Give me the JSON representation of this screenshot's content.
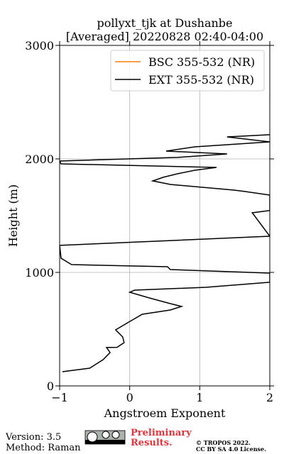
{
  "chart_data": {
    "type": "line",
    "title": "pollyxt_tjk at Dushanbe",
    "subtitle": "[Averaged] 20220828 02:40-04:00",
    "x_label": "Angstroem Exponent",
    "y_label": "Height (m)",
    "y": [
      125,
      156,
      231,
      294,
      338,
      340,
      381,
      431,
      494,
      556,
      631,
      669,
      700,
      725,
      775,
      825,
      844,
      869,
      913,
      994,
      1025,
      1050,
      1069,
      1125,
      1238,
      1319,
      1525,
      1545,
      1619,
      1681,
      1713,
      1725,
      1775,
      1806,
      1838,
      1869,
      1900,
      1925,
      1956,
      1981,
      2013,
      2044,
      2069,
      2106,
      2150,
      2194,
      2213
    ],
    "series": [
      {
        "name": "BSC 355-532 (NR)",
        "color": "#ff7f0e",
        "values": [
          null,
          null,
          null,
          null,
          null,
          null,
          null,
          null,
          null,
          null,
          null,
          null,
          null,
          null,
          null,
          null,
          null,
          null,
          null,
          null,
          null,
          null,
          null,
          null,
          null,
          null,
          null,
          null,
          null,
          null,
          null,
          null,
          null,
          null,
          null,
          null,
          null,
          null,
          null,
          null,
          null,
          null,
          null,
          null,
          null,
          null,
          null
        ]
      },
      {
        "name": "EXT 355-532 (NR)",
        "color": "#000000",
        "values": [
          -0.96,
          -0.57,
          -0.38,
          -0.28,
          -0.33,
          -0.18,
          -0.08,
          -0.1,
          -0.2,
          -0.03,
          0.18,
          0.58,
          0.74,
          0.58,
          0.28,
          0.0,
          0.07,
          1.09,
          2.0,
          2.0,
          0.58,
          0.54,
          -0.83,
          -0.98,
          -1.0,
          2.0,
          1.75,
          2.0,
          2.0,
          2.0,
          1.64,
          1.49,
          0.58,
          0.33,
          0.48,
          0.68,
          0.93,
          1.24,
          -0.98,
          -1.0,
          0.68,
          1.39,
          0.52,
          0.93,
          2.0,
          1.39,
          2.0
        ]
      }
    ],
    "xlim": [
      -1,
      2
    ],
    "xticks": [
      {
        "value": -1,
        "label": "−1"
      },
      0,
      1,
      2
    ],
    "ylim": [
      0,
      3000
    ],
    "yticks": [
      0,
      1000,
      2000,
      3000
    ],
    "grid": true,
    "legend": "upper right"
  },
  "footer": {
    "version": "Version: 3.5",
    "method": "Method: Raman",
    "status": "Preliminary Results.",
    "copyright": "© TROPOS 2022.",
    "license": "CC BY SA 4.0 License."
  }
}
